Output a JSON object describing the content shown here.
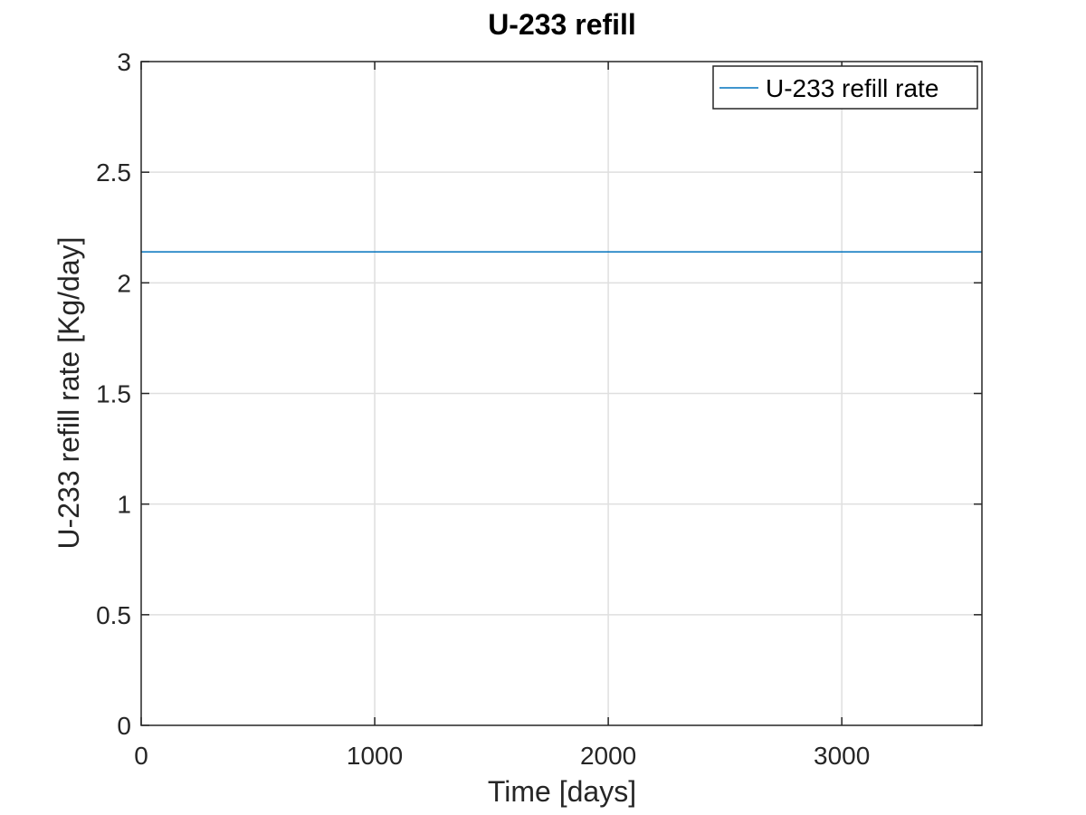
{
  "chart_data": {
    "type": "line",
    "title": "U-233 refill",
    "xlabel": "Time [days]",
    "ylabel": "U-233 refill rate [Kg/day]",
    "xlim": [
      0,
      3600
    ],
    "ylim": [
      0,
      3
    ],
    "xticks": [
      0,
      1000,
      2000,
      3000
    ],
    "xtick_labels": [
      "0",
      "1000",
      "2000",
      "3000"
    ],
    "yticks": [
      0,
      0.5,
      1,
      1.5,
      2,
      2.5,
      3
    ],
    "ytick_labels": [
      "0",
      "0.5",
      "1",
      "1.5",
      "2",
      "2.5",
      "3"
    ],
    "grid": true,
    "legend_position": "top-right",
    "series": [
      {
        "name": "U-233 refill rate",
        "color": "#0072bd",
        "x": [
          0,
          3600
        ],
        "y": [
          2.14,
          2.14
        ]
      }
    ]
  }
}
